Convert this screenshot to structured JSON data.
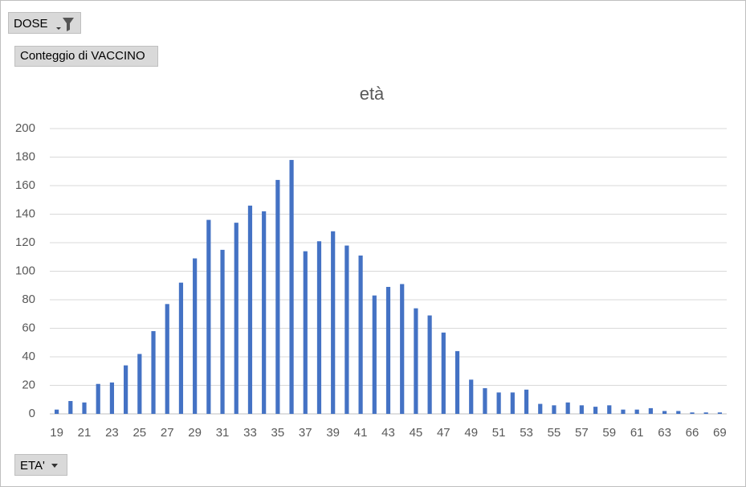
{
  "chart_data": {
    "type": "bar",
    "title": "età",
    "buttons": {
      "filter": "DOSE",
      "values": "Conteggio di VACCINO",
      "axis": "ETA'"
    },
    "categories": [
      "19",
      null,
      "21",
      null,
      "23",
      null,
      "25",
      null,
      "27",
      null,
      "29",
      null,
      "31",
      null,
      "33",
      null,
      "35",
      null,
      "37",
      null,
      "39",
      null,
      "41",
      null,
      "43",
      null,
      "45",
      null,
      "47",
      null,
      "49",
      null,
      "51",
      null,
      "53",
      null,
      "55",
      null,
      "57",
      null,
      "59",
      null,
      "61",
      null,
      "63",
      null,
      "66",
      null,
      "69"
    ],
    "values": [
      3,
      9,
      8,
      21,
      22,
      34,
      42,
      58,
      77,
      92,
      109,
      136,
      115,
      134,
      146,
      142,
      164,
      178,
      114,
      121,
      128,
      118,
      111,
      83,
      89,
      91,
      74,
      69,
      57,
      44,
      24,
      18,
      15,
      15,
      17,
      7,
      6,
      8,
      6,
      5,
      6,
      3,
      3,
      4,
      2,
      2,
      1,
      1,
      1
    ],
    "color": "#4472c4",
    "ylim": [
      0,
      200
    ],
    "yticks": [
      0,
      20,
      40,
      60,
      80,
      100,
      120,
      140,
      160,
      180,
      200
    ],
    "grid": true
  }
}
